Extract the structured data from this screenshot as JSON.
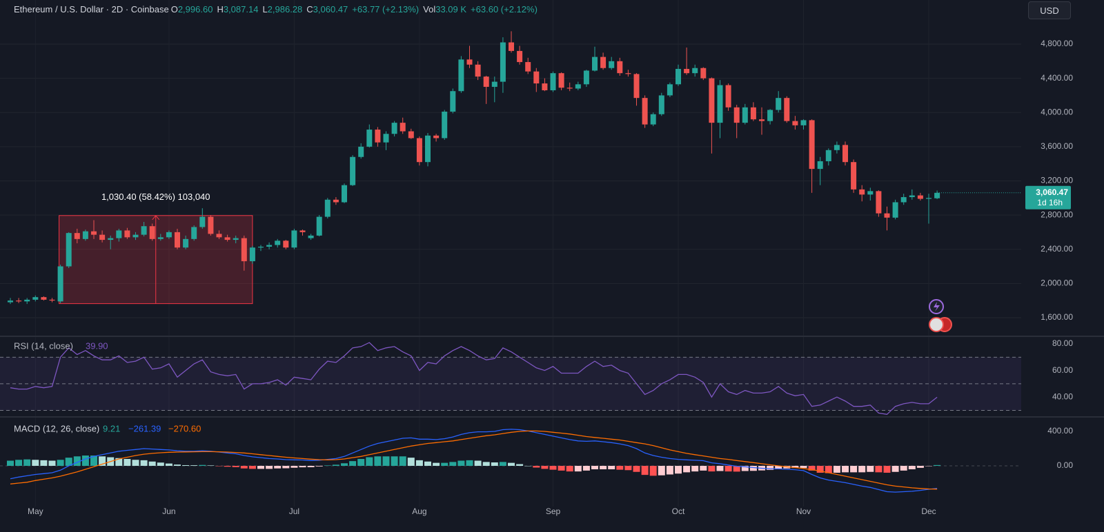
{
  "header": {
    "title": "Ethereum / U.S. Dollar · 2D · Coinbase",
    "ohlc": [
      {
        "key": "O",
        "value": "2,996.60"
      },
      {
        "key": "H",
        "value": "3,087.14"
      },
      {
        "key": "L",
        "value": "2,986.28"
      },
      {
        "key": "C",
        "value": "3,060.47"
      }
    ],
    "change": "+63.77 (+2.13%)",
    "vol_key": "Vol",
    "vol": "33.09 K",
    "vol_change": "+63.60 (+2.12%)"
  },
  "currency_button": "USD",
  "chart_data": [
    {
      "type": "candlestick",
      "categories": [
        null,
        null,
        null,
        "May",
        null,
        null,
        null,
        null,
        null,
        null,
        null,
        null,
        null,
        null,
        null,
        null,
        null,
        null,
        null,
        "Jun",
        null,
        null,
        null,
        null,
        null,
        null,
        null,
        null,
        null,
        null,
        null,
        null,
        null,
        null,
        "Jul",
        null,
        null,
        null,
        null,
        null,
        null,
        null,
        null,
        null,
        null,
        null,
        null,
        null,
        null,
        "Aug",
        null,
        null,
        null,
        null,
        null,
        null,
        null,
        null,
        null,
        null,
        null,
        null,
        null,
        null,
        null,
        "Sep",
        null,
        null,
        null,
        null,
        null,
        null,
        null,
        null,
        null,
        null,
        null,
        null,
        null,
        null,
        "Oct",
        null,
        null,
        null,
        null,
        null,
        null,
        null,
        null,
        null,
        null,
        null,
        null,
        null,
        null,
        "Nov",
        null,
        null,
        null,
        null,
        null,
        null,
        null,
        null,
        null,
        null,
        null,
        null,
        null,
        null,
        "Dec",
        null
      ],
      "open": [
        1780,
        1800,
        1790,
        1810,
        1840,
        1810,
        1790,
        2200,
        2590,
        2520,
        2610,
        2570,
        2510,
        2530,
        2620,
        2540,
        2570,
        2670,
        2520,
        2540,
        2600,
        2420,
        2520,
        2660,
        2780,
        2580,
        2540,
        2510,
        2530,
        2260,
        2420,
        2430,
        2450,
        2500,
        2420,
        2620,
        2530,
        2560,
        2780,
        2980,
        2950,
        3150,
        3480,
        3600,
        3800,
        3650,
        3750,
        3880,
        3780,
        3700,
        3420,
        3730,
        3700,
        4010,
        4250,
        4620,
        4560,
        4420,
        4300,
        4360,
        4820,
        4720,
        4590,
        4480,
        4340,
        4260,
        4460,
        4290,
        4280,
        4330,
        4490,
        4650,
        4520,
        4600,
        4460,
        4450,
        4170,
        3860,
        3980,
        4200,
        4330,
        4510,
        4460,
        4520,
        4400,
        3880,
        4320,
        4060,
        3880,
        4060,
        3920,
        3900,
        4030,
        4170,
        3900,
        3850,
        3910,
        3340,
        3430,
        3560,
        3620,
        3420,
        3100,
        3040,
        3080,
        2820,
        2770,
        2950,
        3010,
        3030,
        2990,
        2996.6
      ],
      "high": [
        1830,
        1830,
        1830,
        1860,
        1850,
        1830,
        2220,
        2600,
        2640,
        2630,
        2740,
        2620,
        2560,
        2640,
        2650,
        2600,
        2720,
        2700,
        2580,
        2620,
        2640,
        2560,
        2680,
        2880,
        2800,
        2620,
        2570,
        2560,
        2560,
        2440,
        2450,
        2480,
        2520,
        2510,
        2640,
        2630,
        2580,
        2800,
        3000,
        3010,
        3170,
        3500,
        3640,
        3860,
        3830,
        3780,
        3900,
        3940,
        3810,
        3720,
        3760,
        3750,
        4030,
        4280,
        4660,
        4780,
        4600,
        4430,
        4420,
        4880,
        4950,
        4780,
        4640,
        4520,
        4400,
        4480,
        4470,
        4350,
        4360,
        4500,
        4770,
        4700,
        4650,
        4640,
        4500,
        4460,
        4200,
        4000,
        4230,
        4350,
        4560,
        4760,
        4560,
        4530,
        4410,
        4380,
        4340,
        4090,
        4100,
        4120,
        4060,
        4040,
        4250,
        4190,
        3960,
        3920,
        3920,
        3480,
        3580,
        3660,
        3660,
        3450,
        3150,
        3120,
        3090,
        2900,
        2980,
        3050,
        3100,
        3060,
        3050,
        3087.14
      ],
      "low": [
        1760,
        1770,
        1760,
        1790,
        1800,
        1780,
        1770,
        2180,
        2470,
        2500,
        2520,
        2480,
        2400,
        2490,
        2520,
        2510,
        2550,
        2500,
        2500,
        2520,
        2400,
        2400,
        2500,
        2640,
        2560,
        2520,
        2490,
        2470,
        2150,
        2230,
        2380,
        2400,
        2420,
        2400,
        2400,
        2560,
        2510,
        2550,
        2760,
        2920,
        2940,
        3140,
        3460,
        3590,
        3600,
        3560,
        3720,
        3750,
        3690,
        3380,
        3370,
        3660,
        3680,
        3990,
        4230,
        4520,
        4380,
        4100,
        4120,
        4230,
        4700,
        4560,
        4450,
        4240,
        4250,
        4240,
        4260,
        4250,
        4260,
        4300,
        4480,
        4500,
        4500,
        4430,
        4420,
        4080,
        3820,
        3840,
        3960,
        4180,
        4310,
        4440,
        4420,
        4380,
        3520,
        3700,
        4020,
        3700,
        3860,
        3900,
        3740,
        3860,
        4000,
        3880,
        3800,
        3800,
        3060,
        3150,
        3380,
        3520,
        3380,
        3060,
        2960,
        2970,
        2780,
        2620,
        2750,
        2920,
        2980,
        2970,
        2700,
        2986.28
      ],
      "close": [
        1800,
        1790,
        1810,
        1840,
        1810,
        1800,
        2200,
        2590,
        2520,
        2610,
        2570,
        2510,
        2530,
        2620,
        2540,
        2570,
        2670,
        2520,
        2540,
        2600,
        2420,
        2520,
        2660,
        2780,
        2580,
        2540,
        2510,
        2530,
        2260,
        2420,
        2430,
        2450,
        2500,
        2420,
        2620,
        2600,
        2560,
        2780,
        2980,
        2950,
        3150,
        3480,
        3600,
        3800,
        3650,
        3750,
        3880,
        3780,
        3700,
        3420,
        3730,
        3700,
        4010,
        4250,
        4620,
        4560,
        4420,
        4300,
        4360,
        4820,
        4720,
        4590,
        4480,
        4340,
        4260,
        4460,
        4290,
        4280,
        4330,
        4490,
        4650,
        4520,
        4600,
        4460,
        4450,
        4170,
        3860,
        3980,
        4200,
        4330,
        4510,
        4460,
        4520,
        4400,
        3880,
        4320,
        4060,
        3880,
        4060,
        3920,
        3900,
        4030,
        4170,
        3900,
        3850,
        3910,
        3340,
        3430,
        3560,
        3620,
        3420,
        3100,
        3040,
        3080,
        2820,
        2770,
        2950,
        3010,
        3030,
        2990,
        3000,
        3060.47
      ],
      "up_color": "#26a69a",
      "down_color": "#ef5350",
      "ylim": [
        1390,
        5316
      ],
      "yticks": [
        {
          "value": 1600,
          "label": "1,600.00"
        },
        {
          "value": 2000,
          "label": "2,000.00"
        },
        {
          "value": 2400,
          "label": "2,400.00"
        },
        {
          "value": 2800,
          "label": "2,800.00"
        },
        {
          "value": 3200,
          "label": "3,200.00"
        },
        {
          "value": 3600,
          "label": "3,600.00"
        },
        {
          "value": 4000,
          "label": "4,000.00"
        },
        {
          "value": 4400,
          "label": "4,400.00"
        },
        {
          "value": 4800,
          "label": "4,800.00"
        }
      ],
      "grid": true,
      "measure": {
        "label": "1,030.40 (58.42%) 103,040",
        "low": 1764,
        "high": 2794.4
      },
      "last_price_label": "3,060.47",
      "countdown": "1d 16h"
    },
    {
      "type": "line",
      "title": "RSI (14, close)",
      "value_label": "39.90",
      "color": "#7e57c2",
      "values": [
        47,
        46,
        46,
        48,
        47,
        48,
        70,
        77,
        72,
        75,
        71,
        68,
        68,
        71,
        66,
        67,
        70,
        61,
        62,
        65,
        55,
        60,
        65,
        68,
        59,
        57,
        56,
        57,
        46,
        50,
        50,
        51,
        53,
        49,
        55,
        54,
        53,
        61,
        67,
        66,
        71,
        77,
        78,
        81,
        75,
        77,
        78,
        74,
        71,
        60,
        66,
        65,
        71,
        75,
        78,
        75,
        71,
        68,
        69,
        77,
        74,
        70,
        66,
        62,
        60,
        63,
        58,
        58,
        58,
        63,
        67,
        63,
        64,
        60,
        58,
        50,
        42,
        45,
        50,
        53,
        57,
        57,
        55,
        51,
        40,
        50,
        44,
        42,
        45,
        43,
        43,
        44,
        48,
        43,
        41,
        42,
        33,
        34,
        37,
        40,
        37,
        33,
        33,
        34,
        28,
        27,
        33,
        35,
        36,
        35,
        35,
        39.9
      ],
      "ylim": [
        25.6,
        85.2
      ],
      "yticks": [
        {
          "value": 40,
          "label": "40.00"
        },
        {
          "value": 60,
          "label": "60.00"
        },
        {
          "value": 80,
          "label": "80.00"
        }
      ],
      "levels": [
        70,
        50,
        30
      ]
    },
    {
      "type": "macd",
      "title": "MACD (12, 26, close)",
      "value_labels": [
        "9.21",
        "−261.39",
        "−270.60"
      ],
      "histogram": {
        "values": [
          60,
          70,
          75,
          70,
          65,
          60,
          70,
          95,
          110,
          120,
          120,
          110,
          100,
          90,
          80,
          70,
          65,
          50,
          38,
          27,
          15,
          8,
          7,
          10,
          5,
          -3,
          -10,
          -15,
          -30,
          -35,
          -35,
          -35,
          -30,
          -28,
          -22,
          -17,
          -16,
          -7,
          5,
          13,
          30,
          55,
          80,
          100,
          110,
          110,
          110,
          110,
          95,
          65,
          50,
          35,
          35,
          45,
          60,
          65,
          60,
          45,
          40,
          45,
          35,
          20,
          0,
          -20,
          -35,
          -45,
          -55,
          -65,
          -65,
          -55,
          -40,
          -40,
          -40,
          -45,
          -50,
          -70,
          -105,
          -115,
          -110,
          -100,
          -90,
          -75,
          -65,
          -55,
          -65,
          -60,
          -65,
          -67,
          -60,
          -58,
          -53,
          -47,
          -35,
          -30,
          -25,
          -25,
          -55,
          -80,
          -85,
          -80,
          -75,
          -75,
          -75,
          -70,
          -75,
          -80,
          -70,
          -55,
          -40,
          -23,
          -4,
          9.21
        ],
        "colors": {
          "grow_above": "#26a69a",
          "fall_above": "#b2dfdb",
          "grow_below": "#ffcdd2",
          "fall_below": "#ff5252"
        }
      },
      "macd": {
        "color": "#2962ff",
        "values": [
          -150,
          -130,
          -115,
          -100,
          -90,
          -80,
          -50,
          0,
          40,
          80,
          110,
          130,
          150,
          170,
          180,
          190,
          200,
          195,
          190,
          185,
          175,
          170,
          170,
          175,
          170,
          160,
          150,
          140,
          120,
          105,
          95,
          85,
          80,
          72,
          70,
          68,
          62,
          65,
          75,
          85,
          110,
          150,
          190,
          230,
          260,
          280,
          300,
          320,
          325,
          310,
          310,
          305,
          315,
          335,
          365,
          385,
          395,
          395,
          400,
          420,
          425,
          420,
          405,
          385,
          365,
          345,
          325,
          305,
          290,
          285,
          290,
          280,
          270,
          255,
          235,
          200,
          150,
          120,
          100,
          85,
          75,
          70,
          65,
          60,
          35,
          25,
          10,
          -5,
          -10,
          -20,
          -28,
          -35,
          -35,
          -40,
          -45,
          -55,
          -100,
          -140,
          -165,
          -180,
          -195,
          -215,
          -235,
          -250,
          -275,
          -300,
          -305,
          -300,
          -295,
          -285,
          -272,
          -261.39
        ]
      },
      "signal": {
        "color": "#ff6d00",
        "values": [
          -210,
          -200,
          -190,
          -170,
          -155,
          -140,
          -120,
          -95,
          -70,
          -40,
          -10,
          20,
          50,
          80,
          100,
          120,
          135,
          145,
          152,
          158,
          160,
          162,
          163,
          165,
          165,
          163,
          160,
          155,
          150,
          140,
          130,
          120,
          110,
          100,
          92,
          85,
          78,
          72,
          70,
          72,
          80,
          95,
          110,
          130,
          150,
          170,
          190,
          210,
          230,
          245,
          260,
          270,
          280,
          290,
          305,
          320,
          335,
          350,
          360,
          375,
          390,
          400,
          405,
          405,
          400,
          390,
          380,
          370,
          355,
          340,
          330,
          320,
          310,
          300,
          285,
          270,
          255,
          235,
          210,
          185,
          165,
          145,
          130,
          115,
          100,
          85,
          75,
          62,
          50,
          38,
          25,
          12,
          0,
          -10,
          -20,
          -30,
          -45,
          -60,
          -80,
          -100,
          -120,
          -140,
          -160,
          -180,
          -200,
          -220,
          -235,
          -245,
          -255,
          -262,
          -268,
          -270.6
        ]
      },
      "ylim": [
        -472,
        552
      ],
      "yticks": [
        {
          "value": 0,
          "label": "0.00"
        },
        {
          "value": 400,
          "label": "400.00"
        }
      ]
    }
  ]
}
